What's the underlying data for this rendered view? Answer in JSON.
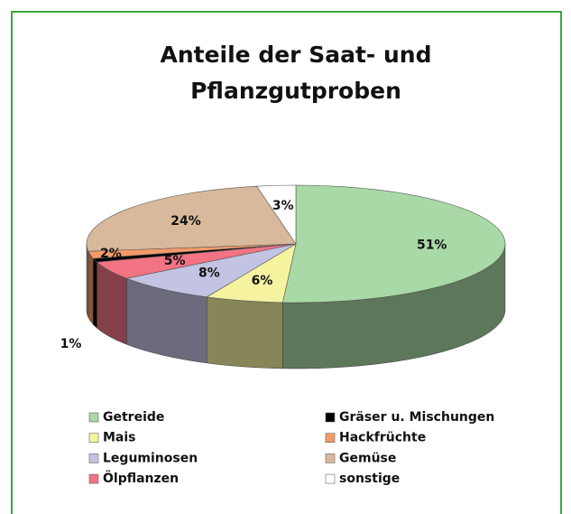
{
  "chart_data": {
    "type": "pie3d",
    "title": [
      "Anteile der Saat- und",
      "Pflanzgutproben"
    ],
    "categories": [
      "Getreide",
      "Mais",
      "Leguminosen",
      "Ölpflanzen",
      "Gräser u. Mischungen",
      "Hackfrüchte",
      "Gemüse",
      "sonstige"
    ],
    "values": [
      51,
      6,
      8,
      5,
      1,
      2,
      24,
      3
    ],
    "value_labels": [
      "51%",
      "6%",
      "8%",
      "5%",
      "1%",
      "2%",
      "24%",
      "3%"
    ],
    "colors": [
      "#a9d9a6",
      "#f6f3a0",
      "#c3c3e3",
      "#f27383",
      "#000000",
      "#f39a6a",
      "#d9b99b",
      "#ffffff"
    ]
  }
}
